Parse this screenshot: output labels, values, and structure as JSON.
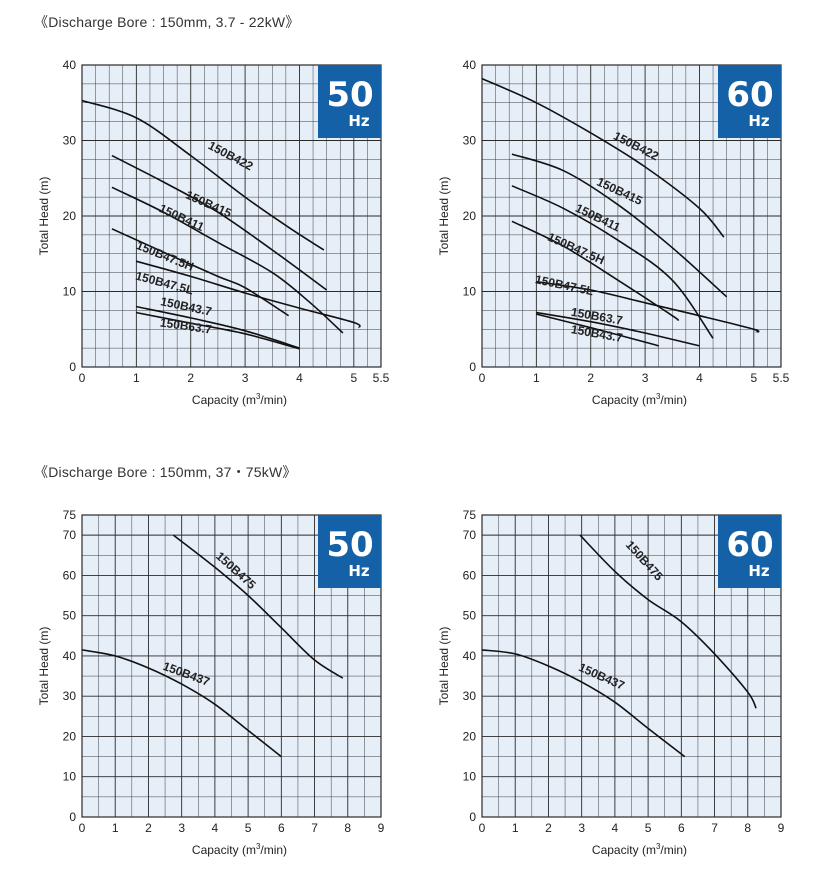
{
  "sections": [
    {
      "heading": "《Discharge Bore : 150mm, 3.7 - 22kW》"
    },
    {
      "heading": "《Discharge Bore : 150mm, 37・75kW》"
    }
  ],
  "colors": {
    "plot_bg": "#e6eef8",
    "grid": "#2a2a2a",
    "badge": "#1561a8",
    "curve": "#111111"
  },
  "chart_data": [
    {
      "type": "line",
      "badge": {
        "value": "50",
        "unit": "Hz"
      },
      "xlabel_prefix": "Capacity (m",
      "xlabel_sup": "3",
      "xlabel_suffix": "/min)",
      "ylabel": "Total Head (m)",
      "xlim": [
        0,
        5.5
      ],
      "ylim": [
        0,
        40
      ],
      "xticks": [
        {
          "v": 0,
          "t": "0"
        },
        {
          "v": 1,
          "t": "1"
        },
        {
          "v": 2,
          "t": "2"
        },
        {
          "v": 3,
          "t": "3"
        },
        {
          "v": 4,
          "t": "4"
        },
        {
          "v": 5,
          "t": "5"
        },
        {
          "v": 5.5,
          "t": "5.5"
        }
      ],
      "yticks": [
        {
          "v": 0,
          "t": "0"
        },
        {
          "v": 10,
          "t": "10"
        },
        {
          "v": 20,
          "t": "20"
        },
        {
          "v": 30,
          "t": "30"
        },
        {
          "v": 40,
          "t": "40"
        }
      ],
      "xgrid_step": 0.25,
      "ygrid_step": 2.5,
      "series": [
        {
          "name": "150B422",
          "label_at": [
            2.7,
            27.5
          ],
          "label_angle": 28,
          "points": [
            [
              0,
              35.3
            ],
            [
              1,
              33
            ],
            [
              2,
              28
            ],
            [
              3,
              22.5
            ],
            [
              3.8,
              18.5
            ],
            [
              4.45,
              15.5
            ]
          ]
        },
        {
          "name": "150B415",
          "label_at": [
            2.3,
            21.1
          ],
          "label_angle": 24,
          "points": [
            [
              0.55,
              28
            ],
            [
              1.5,
              24.5
            ],
            [
              2.5,
              20.5
            ],
            [
              3.5,
              15.5
            ],
            [
              4.5,
              10.2
            ]
          ]
        },
        {
          "name": "150B411",
          "label_at": [
            1.8,
            19.3
          ],
          "label_angle": 25,
          "points": [
            [
              0.55,
              23.8
            ],
            [
              1.5,
              20.5
            ],
            [
              2.5,
              16.5
            ],
            [
              3.5,
              12.5
            ],
            [
              4.2,
              8.5
            ],
            [
              4.8,
              4.5
            ]
          ]
        },
        {
          "name": "150B47.5H",
          "label_at": [
            1.5,
            14.2
          ],
          "label_angle": 22,
          "points": [
            [
              0.55,
              18.3
            ],
            [
              1.5,
              15.2
            ],
            [
              2.5,
              12
            ],
            [
              3,
              10.5
            ],
            [
              3.8,
              6.8
            ]
          ]
        },
        {
          "name": "150B47.5L",
          "label_at": [
            1.5,
            10.6
          ],
          "label_angle": 15,
          "points": [
            [
              1,
              14
            ],
            [
              2,
              12
            ],
            [
              3,
              9.8
            ],
            [
              4,
              7.8
            ],
            [
              5,
              5.9
            ],
            [
              5.1,
              5.2
            ]
          ]
        },
        {
          "name": "150B43.7",
          "label_at": [
            1.9,
            7.5
          ],
          "label_angle": 12,
          "points": [
            [
              1,
              8
            ],
            [
              2,
              6.5
            ],
            [
              3,
              4.8
            ],
            [
              4,
              2.5
            ]
          ]
        },
        {
          "name": "150B63.7",
          "label_at": [
            1.9,
            4.9
          ],
          "label_angle": 8,
          "points": [
            [
              1,
              7.2
            ],
            [
              2,
              5.8
            ],
            [
              3,
              4.4
            ],
            [
              4,
              2.4
            ]
          ]
        }
      ]
    },
    {
      "type": "line",
      "badge": {
        "value": "60",
        "unit": "Hz"
      },
      "xlabel_prefix": "Capacity (m",
      "xlabel_sup": "3",
      "xlabel_suffix": "/min)",
      "ylabel": "Total Head (m)",
      "xlim": [
        0,
        5.5
      ],
      "ylim": [
        0,
        40
      ],
      "xticks": [
        {
          "v": 0,
          "t": "0"
        },
        {
          "v": 1,
          "t": "1"
        },
        {
          "v": 2,
          "t": "2"
        },
        {
          "v": 3,
          "t": "3"
        },
        {
          "v": 4,
          "t": "4"
        },
        {
          "v": 5,
          "t": "5"
        },
        {
          "v": 5.5,
          "t": "5.5"
        }
      ],
      "yticks": [
        {
          "v": 0,
          "t": "0"
        },
        {
          "v": 10,
          "t": "10"
        },
        {
          "v": 20,
          "t": "20"
        },
        {
          "v": 30,
          "t": "30"
        },
        {
          "v": 40,
          "t": "40"
        }
      ],
      "xgrid_step": 0.25,
      "ygrid_step": 2.5,
      "series": [
        {
          "name": "150B422",
          "label_at": [
            2.8,
            28.8
          ],
          "label_angle": 27,
          "points": [
            [
              0,
              38.2
            ],
            [
              1,
              35
            ],
            [
              2,
              31
            ],
            [
              3,
              26.5
            ],
            [
              4,
              21
            ],
            [
              4.45,
              17.2
            ]
          ]
        },
        {
          "name": "150B415",
          "label_at": [
            2.5,
            22.8
          ],
          "label_angle": 25,
          "points": [
            [
              0.55,
              28.2
            ],
            [
              1.5,
              26
            ],
            [
              2.5,
              21.5
            ],
            [
              3.5,
              15.8
            ],
            [
              4.5,
              9.3
            ]
          ]
        },
        {
          "name": "150B411",
          "label_at": [
            2.1,
            19.3
          ],
          "label_angle": 26,
          "points": [
            [
              0.55,
              24
            ],
            [
              1.5,
              21
            ],
            [
              2.5,
              16.8
            ],
            [
              3.5,
              11.5
            ],
            [
              4.25,
              3.8
            ]
          ]
        },
        {
          "name": "150B47.5H",
          "label_at": [
            1.7,
            15.2
          ],
          "label_angle": 24,
          "points": [
            [
              0.55,
              19.3
            ],
            [
              1.5,
              16
            ],
            [
              2.5,
              11.5
            ],
            [
              3.5,
              6.8
            ],
            [
              3.6,
              6.2
            ]
          ]
        },
        {
          "name": "150B47.5L",
          "label_at": [
            1.5,
            10.3
          ],
          "label_angle": 12,
          "points": [
            [
              1,
              11.3
            ],
            [
              2,
              10.2
            ],
            [
              3,
              8.5
            ],
            [
              4,
              6.8
            ],
            [
              5,
              5
            ],
            [
              5.05,
              4.6
            ]
          ]
        },
        {
          "name": "150B63.7",
          "label_at": [
            2.1,
            6.2
          ],
          "label_angle": 10,
          "points": [
            [
              1,
              7.2
            ],
            [
              2,
              6
            ],
            [
              3,
              4.5
            ],
            [
              4,
              2.8
            ]
          ]
        },
        {
          "name": "150B43.7",
          "label_at": [
            2.1,
            3.9
          ],
          "label_angle": 10,
          "points": [
            [
              1,
              7
            ],
            [
              2,
              5.2
            ],
            [
              3,
              3.3
            ],
            [
              3.25,
              2.8
            ]
          ]
        }
      ]
    },
    {
      "type": "line",
      "badge": {
        "value": "50",
        "unit": "Hz"
      },
      "xlabel_prefix": "Capacity (m",
      "xlabel_sup": "3",
      "xlabel_suffix": "/min)",
      "ylabel": "Total Head (m)",
      "xlim": [
        0,
        9
      ],
      "ylim": [
        0,
        75
      ],
      "xticks": [
        {
          "v": 0,
          "t": "0"
        },
        {
          "v": 1,
          "t": "1"
        },
        {
          "v": 2,
          "t": "2"
        },
        {
          "v": 3,
          "t": "3"
        },
        {
          "v": 4,
          "t": "4"
        },
        {
          "v": 5,
          "t": "5"
        },
        {
          "v": 6,
          "t": "6"
        },
        {
          "v": 7,
          "t": "7"
        },
        {
          "v": 8,
          "t": "8"
        },
        {
          "v": 9,
          "t": "9"
        }
      ],
      "yticks": [
        {
          "v": 0,
          "t": "0"
        },
        {
          "v": 10,
          "t": "10"
        },
        {
          "v": 20,
          "t": "20"
        },
        {
          "v": 30,
          "t": "30"
        },
        {
          "v": 40,
          "t": "40"
        },
        {
          "v": 50,
          "t": "50"
        },
        {
          "v": 60,
          "t": "60"
        },
        {
          "v": 70,
          "t": "70"
        },
        {
          "v": 75,
          "t": "75"
        }
      ],
      "xgrid_step": 0.5,
      "ygrid_step": 5,
      "series": [
        {
          "name": "150B475",
          "label_at": [
            4.55,
            60.5
          ],
          "label_angle": 42,
          "points": [
            [
              2.75,
              70
            ],
            [
              4,
              62
            ],
            [
              5,
              55
            ],
            [
              6,
              47
            ],
            [
              7,
              39
            ],
            [
              7.85,
              34.5
            ]
          ]
        },
        {
          "name": "150B437",
          "label_at": [
            3.1,
            34.6
          ],
          "label_angle": 20,
          "points": [
            [
              0,
              41.5
            ],
            [
              1,
              40
            ],
            [
              2,
              37
            ],
            [
              3,
              33
            ],
            [
              4,
              28
            ],
            [
              5,
              21.5
            ],
            [
              6,
              15
            ]
          ]
        }
      ]
    },
    {
      "type": "line",
      "badge": {
        "value": "60",
        "unit": "Hz"
      },
      "xlabel_prefix": "Capacity (m",
      "xlabel_sup": "3",
      "xlabel_suffix": "/min)",
      "ylabel": "Total Head (m)",
      "xlim": [
        0,
        9
      ],
      "ylim": [
        0,
        75
      ],
      "xticks": [
        {
          "v": 0,
          "t": "0"
        },
        {
          "v": 1,
          "t": "1"
        },
        {
          "v": 2,
          "t": "2"
        },
        {
          "v": 3,
          "t": "3"
        },
        {
          "v": 4,
          "t": "4"
        },
        {
          "v": 5,
          "t": "5"
        },
        {
          "v": 6,
          "t": "6"
        },
        {
          "v": 7,
          "t": "7"
        },
        {
          "v": 8,
          "t": "8"
        },
        {
          "v": 9,
          "t": "9"
        }
      ],
      "yticks": [
        {
          "v": 0,
          "t": "0"
        },
        {
          "v": 10,
          "t": "10"
        },
        {
          "v": 20,
          "t": "20"
        },
        {
          "v": 30,
          "t": "30"
        },
        {
          "v": 40,
          "t": "40"
        },
        {
          "v": 50,
          "t": "50"
        },
        {
          "v": 60,
          "t": "60"
        },
        {
          "v": 70,
          "t": "70"
        },
        {
          "v": 75,
          "t": "75"
        }
      ],
      "xgrid_step": 0.5,
      "ygrid_step": 5,
      "series": [
        {
          "name": "150B475",
          "label_at": [
            4.8,
            63
          ],
          "label_angle": 48,
          "points": [
            [
              2.95,
              70
            ],
            [
              4,
              61
            ],
            [
              5,
              54
            ],
            [
              6,
              48.5
            ],
            [
              7,
              40.5
            ],
            [
              8,
              31
            ],
            [
              8.25,
              27
            ]
          ]
        },
        {
          "name": "150B437",
          "label_at": [
            3.55,
            34
          ],
          "label_angle": 24,
          "points": [
            [
              0,
              41.5
            ],
            [
              1,
              40.5
            ],
            [
              2,
              37.5
            ],
            [
              3,
              33.5
            ],
            [
              4,
              28.5
            ],
            [
              5,
              22
            ],
            [
              6.1,
              15
            ]
          ]
        }
      ]
    }
  ]
}
